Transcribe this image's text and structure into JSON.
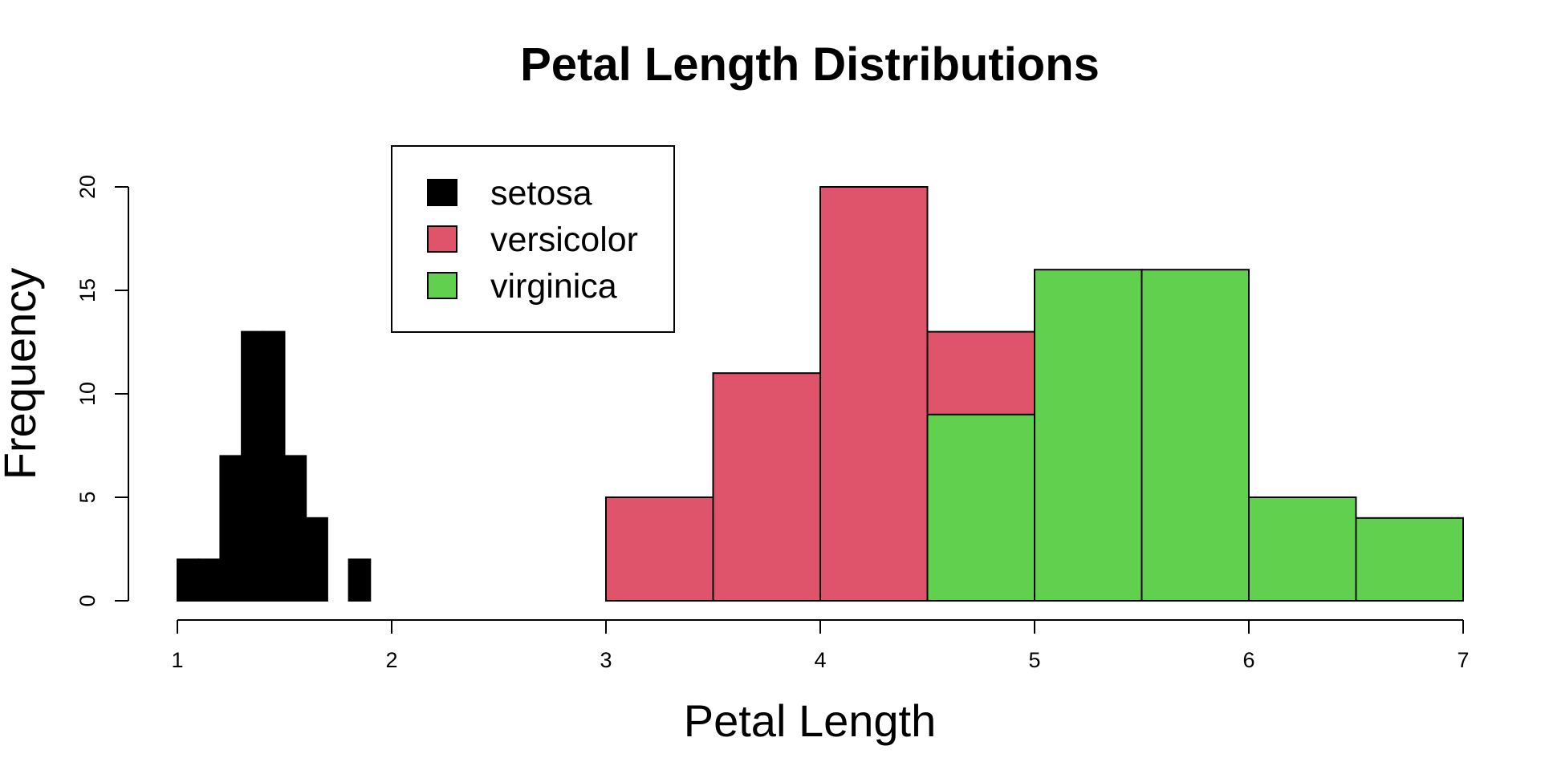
{
  "chart_data": {
    "type": "bar",
    "title": "Petal Length Distributions",
    "xlabel": "Petal Length",
    "ylabel": "Frequency",
    "xlim": [
      1,
      7
    ],
    "ylim": [
      0,
      20
    ],
    "x_ticks": [
      1,
      2,
      3,
      4,
      5,
      6,
      7
    ],
    "y_ticks": [
      0,
      5,
      10,
      15,
      20
    ],
    "grid": false,
    "legend_position": "top-left",
    "series": [
      {
        "name": "setosa",
        "color": "#000000",
        "bins": [
          {
            "x0": 1.0,
            "x1": 1.1,
            "count": 2
          },
          {
            "x0": 1.1,
            "x1": 1.2,
            "count": 2
          },
          {
            "x0": 1.2,
            "x1": 1.3,
            "count": 7
          },
          {
            "x0": 1.3,
            "x1": 1.4,
            "count": 13
          },
          {
            "x0": 1.4,
            "x1": 1.5,
            "count": 13
          },
          {
            "x0": 1.5,
            "x1": 1.6,
            "count": 7
          },
          {
            "x0": 1.6,
            "x1": 1.7,
            "count": 4
          },
          {
            "x0": 1.7,
            "x1": 1.8,
            "count": 0
          },
          {
            "x0": 1.8,
            "x1": 1.9,
            "count": 2
          }
        ]
      },
      {
        "name": "versicolor",
        "color": "#DF536B",
        "bins": [
          {
            "x0": 3.0,
            "x1": 3.5,
            "count": 5
          },
          {
            "x0": 3.5,
            "x1": 4.0,
            "count": 11
          },
          {
            "x0": 4.0,
            "x1": 4.5,
            "count": 20
          },
          {
            "x0": 4.5,
            "x1": 5.0,
            "count": 13
          },
          {
            "x0": 5.0,
            "x1": 5.5,
            "count": 1
          }
        ]
      },
      {
        "name": "virginica",
        "color": "#61D04F",
        "bins": [
          {
            "x0": 4.5,
            "x1": 5.0,
            "count": 9
          },
          {
            "x0": 5.0,
            "x1": 5.5,
            "count": 16
          },
          {
            "x0": 5.5,
            "x1": 6.0,
            "count": 16
          },
          {
            "x0": 6.0,
            "x1": 6.5,
            "count": 5
          },
          {
            "x0": 6.5,
            "x1": 7.0,
            "count": 4
          }
        ]
      }
    ]
  }
}
